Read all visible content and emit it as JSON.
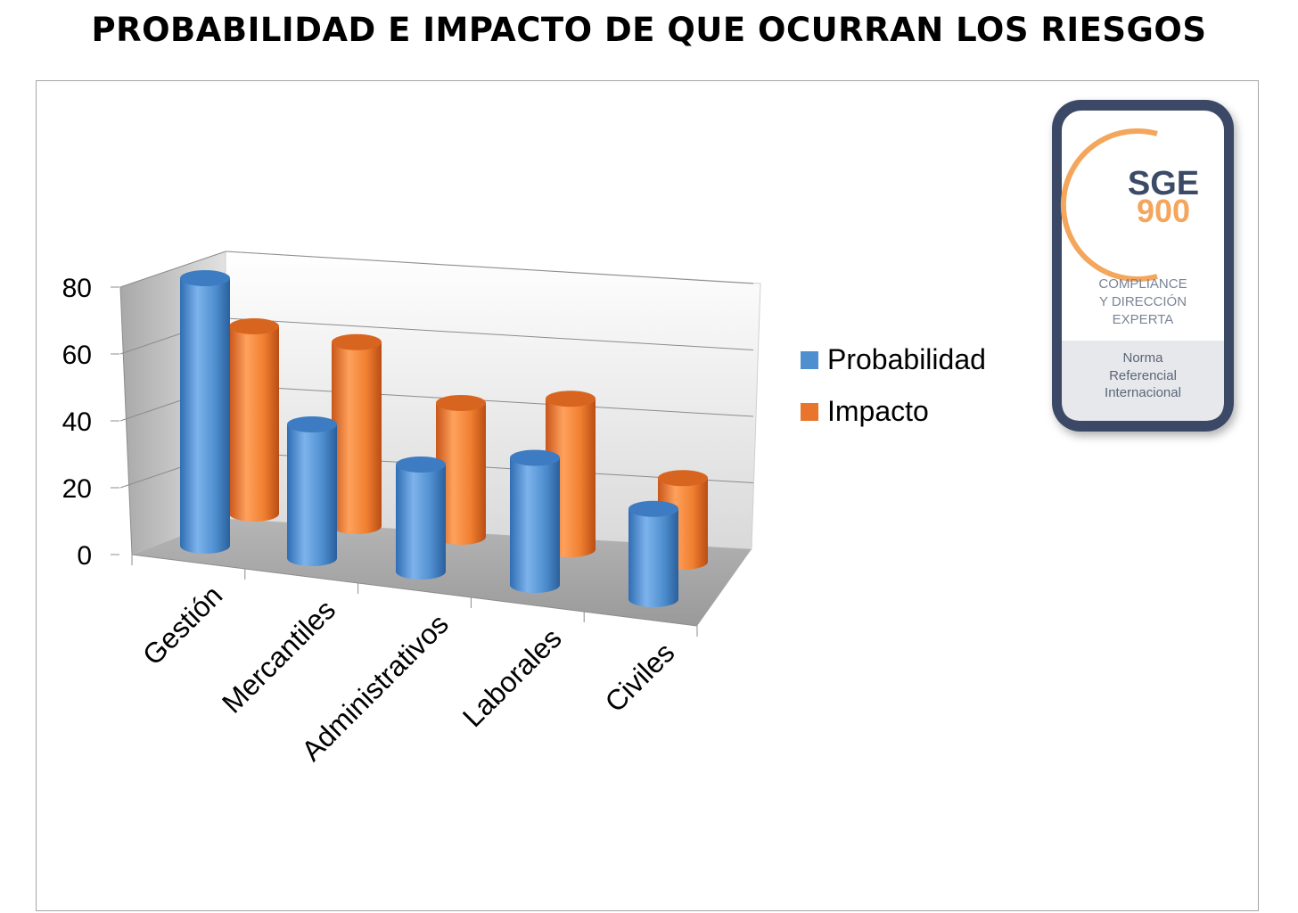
{
  "title": "PROBABILIDAD E IMPACTO DE QUE OCURRAN LOS RIESGOS",
  "chart_data": {
    "type": "bar",
    "style": "3d-cylinder",
    "categories": [
      "Gestión",
      "Mercantiles",
      "Administrativos",
      "Laborales",
      "Civiles"
    ],
    "series": [
      {
        "name": "Probabilidad",
        "color": "#4f8fd0",
        "values": [
          80,
          40,
          32,
          38,
          27
        ]
      },
      {
        "name": "Impacto",
        "color": "#e9742b",
        "values": [
          56,
          55,
          40,
          45,
          25
        ]
      }
    ],
    "yticks": [
      "0",
      "20",
      "40",
      "60",
      "80"
    ],
    "ylim": [
      0,
      80
    ],
    "grid": true,
    "legend": "right"
  },
  "badge": {
    "brand_top": "SGE",
    "brand_bottom": "900",
    "tagline": [
      "COMPLIANCE",
      "Y DIRECCIÓN",
      "EXPERTA"
    ],
    "footer": [
      "Norma",
      "Referencial",
      "Internacional"
    ],
    "colors": {
      "navy": "#3b4a66",
      "orange": "#f3a65c",
      "gray_text": "#7a8496"
    }
  }
}
